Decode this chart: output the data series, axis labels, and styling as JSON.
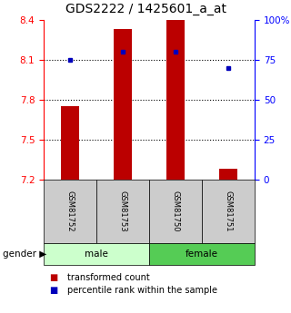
{
  "title": "GDS2222 / 1425601_a_at",
  "samples": [
    "GSM81752",
    "GSM81753",
    "GSM81750",
    "GSM81751"
  ],
  "bar_bottom": 7.2,
  "transformed_counts": [
    7.75,
    8.33,
    8.4,
    7.28
  ],
  "percentile_ranks": [
    75,
    80,
    80,
    70
  ],
  "ylim_left": [
    7.2,
    8.4
  ],
  "ylim_right": [
    0,
    100
  ],
  "yticks_left": [
    7.2,
    7.5,
    7.8,
    8.1,
    8.4
  ],
  "yticks_right": [
    0,
    25,
    50,
    75,
    100
  ],
  "ytick_labels_right": [
    "0",
    "25",
    "50",
    "75",
    "100%"
  ],
  "bar_color": "#bb0000",
  "dot_color": "#0000bb",
  "bar_width": 0.35,
  "grid_yticks": [
    7.5,
    7.8,
    8.1
  ],
  "male_color": "#ccffcc",
  "female_color": "#55cc55",
  "sample_box_color": "#cccccc",
  "title_fontsize": 10,
  "tick_fontsize": 7.5,
  "legend_fontsize": 7
}
